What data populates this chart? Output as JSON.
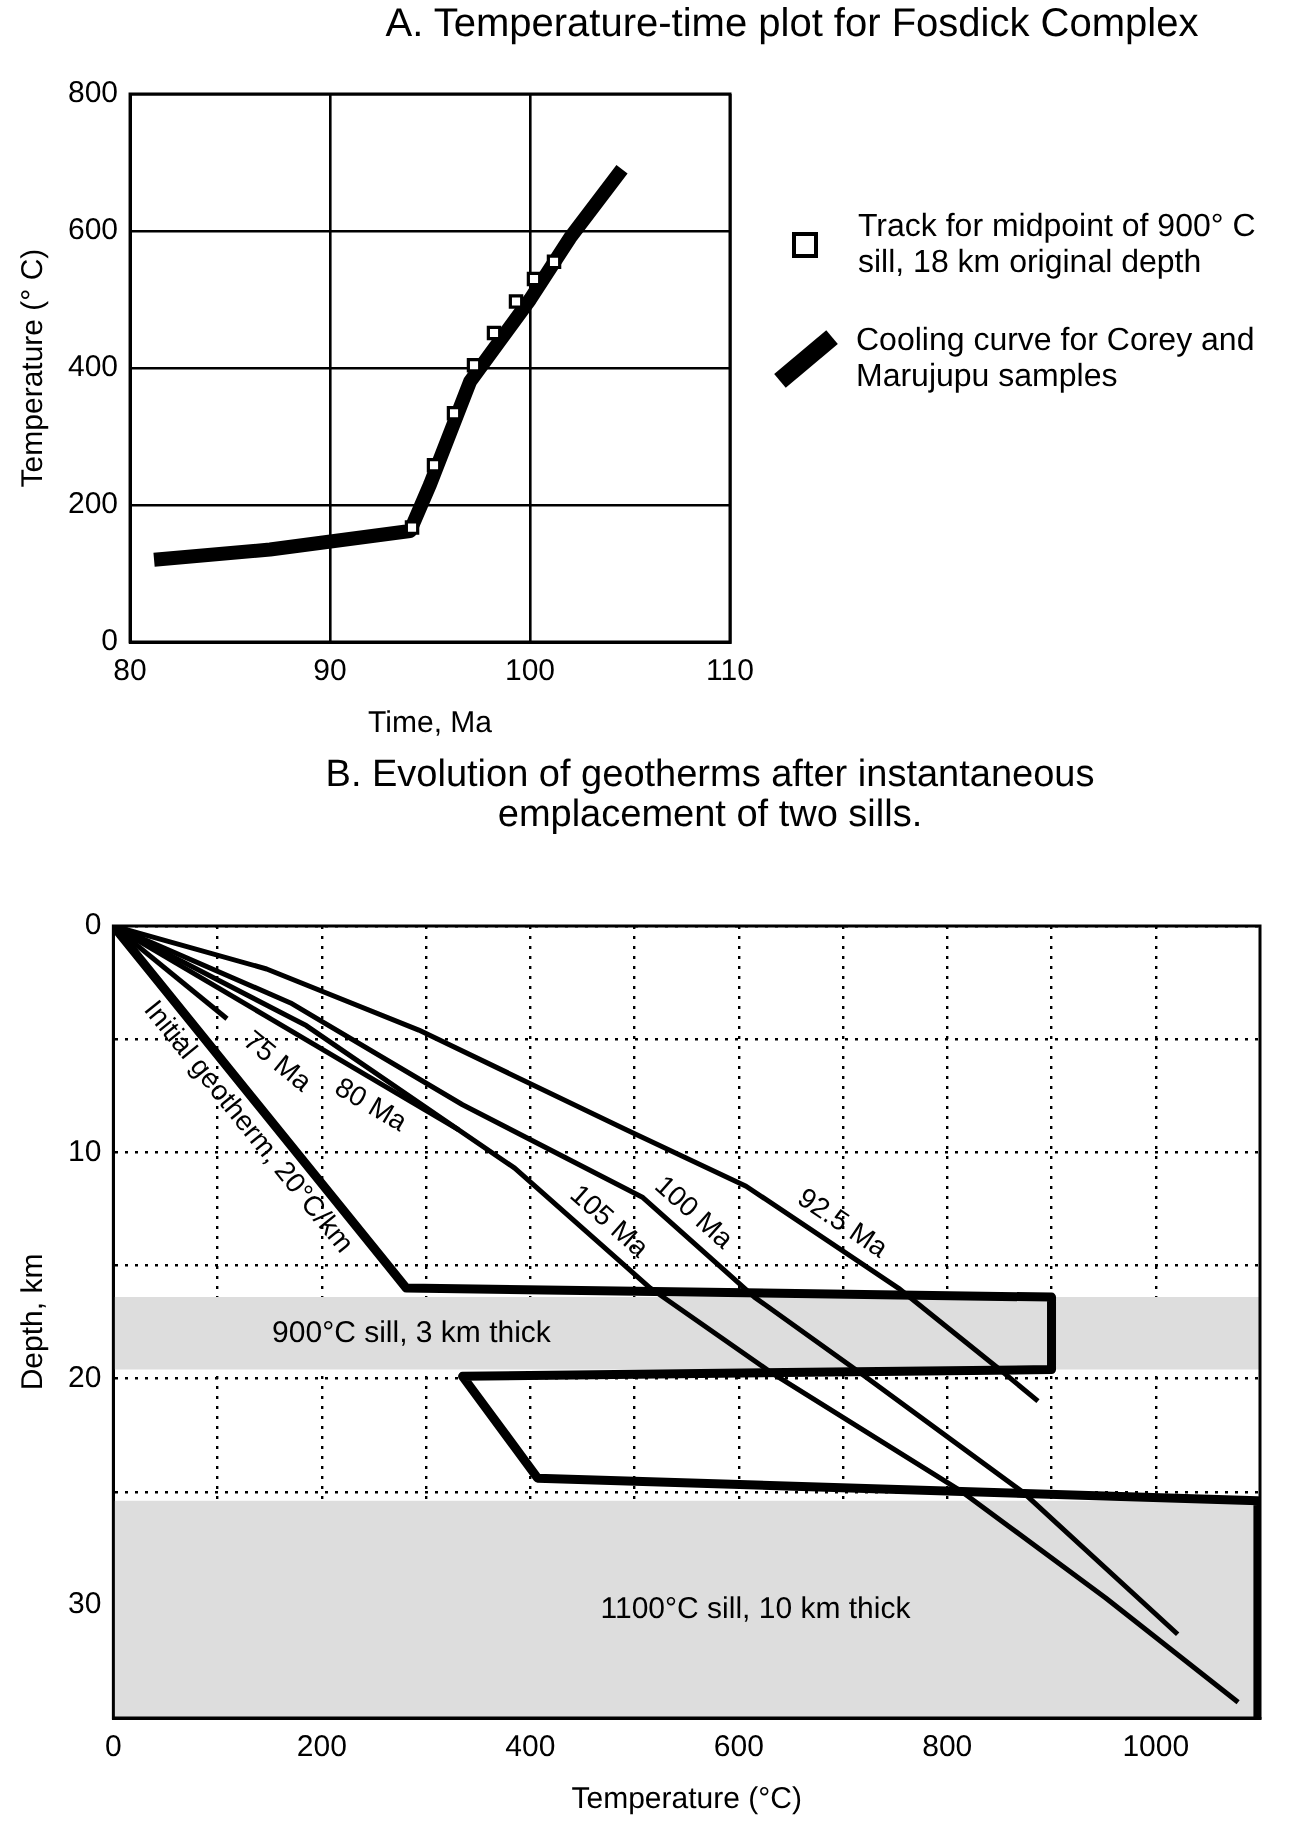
{
  "chart_data": [
    {
      "type": "line",
      "title": "A. Temperature-time plot for Fosdick Complex",
      "xlabel": "Time, Ma",
      "ylabel": "Temperature (° C)",
      "xlim": [
        80,
        110
      ],
      "xticks": [
        80,
        90,
        100,
        110
      ],
      "ylim": [
        0,
        800
      ],
      "yticks": [
        0,
        200,
        400,
        600,
        800
      ],
      "grid": true,
      "legend": "right",
      "series": [
        {
          "type": "scatter",
          "name": "Track for midpoint of 900° C sill, 18 km original depth",
          "color": "#000000",
          "marker": "square",
          "x": [
            94.1,
            95.2,
            96.2,
            97.2,
            98.2,
            99.3,
            100.2,
            101.2
          ],
          "values": [
            167,
            258,
            334,
            404,
            451,
            497,
            530,
            555
          ]
        },
        {
          "type": "line",
          "name": "Cooling curve for Corey and Marujupu samples",
          "color": "#000000",
          "marker": "none",
          "line_style": "solid",
          "x": [
            81.2,
            87,
            94,
            95,
            97,
            100,
            102,
            104.6
          ],
          "values": [
            120,
            135,
            162,
            230,
            380,
            500,
            590,
            690
          ]
        }
      ]
    },
    {
      "type": "line",
      "title": "B. Evolution of geotherms after instantaneous emplacement of two sills.",
      "xlabel": "Temperature (°C)",
      "ylabel": "Depth, km",
      "xlim": [
        0,
        1100
      ],
      "xticks": [
        0,
        {
          "value": 100,
          "label": null
        },
        200,
        {
          "value": 300,
          "label": null
        },
        400,
        {
          "value": 500,
          "label": null
        },
        600,
        {
          "value": 700,
          "label": null
        },
        800,
        {
          "value": 900,
          "label": null
        },
        1000
      ],
      "ylim": [
        35,
        0
      ],
      "yticks": [
        0,
        {
          "value": 5,
          "label": null
        },
        10,
        {
          "value": 15,
          "label": null
        },
        20,
        {
          "value": 25,
          "label": null
        },
        30
      ],
      "grid": true,
      "marker": "none",
      "line_style": "solid",
      "series": [
        {
          "name": "Initial geotherm, 20°C/km",
          "color": "#000000",
          "x": [
            0,
            281,
            900,
            900,
            335,
            407,
            1098,
            1098
          ],
          "values": [
            0,
            16,
            16.4,
            19.6,
            19.9,
            24.4,
            25.4,
            35
          ]
        },
        {
          "name": "75 Ma",
          "color": "#000000",
          "x": [
            0,
            109
          ],
          "values": [
            0,
            4.1
          ]
        },
        {
          "name": "80 Ma",
          "color": "#000000",
          "x": [
            0,
            331
          ],
          "values": [
            0,
            9
          ]
        },
        {
          "name": "92.5 Ma",
          "color": "#000000",
          "x": [
            0,
            147,
            293,
            492,
            607,
            753,
            853,
            887
          ],
          "values": [
            0,
            1.9,
            4.6,
            9,
            11.5,
            16,
            19.7,
            21
          ]
        },
        {
          "name": "100 Ma",
          "color": "#000000",
          "x": [
            0,
            170,
            335,
            508,
            615,
            715,
            872,
            1021
          ],
          "values": [
            0,
            3.4,
            7.9,
            12,
            16.4,
            19.7,
            25,
            31.3
          ]
        },
        {
          "name": "105 Ma",
          "color": "#000000",
          "x": [
            0,
            185,
            385,
            515,
            630,
            814,
            952,
            1079
          ],
          "values": [
            0,
            4.4,
            10.7,
            16,
            19.7,
            25,
            29.7,
            34.3
          ]
        }
      ],
      "bands": [
        {
          "axis": "y",
          "from": 16.4,
          "to": 19.6,
          "color": "#dddddd",
          "label": "900°C sill, 3 km thick"
        },
        {
          "axis": "y",
          "from": 25.4,
          "to": 35,
          "color": "#dddddd",
          "label": "1100°C sill, 10 km thick"
        }
      ]
    }
  ]
}
